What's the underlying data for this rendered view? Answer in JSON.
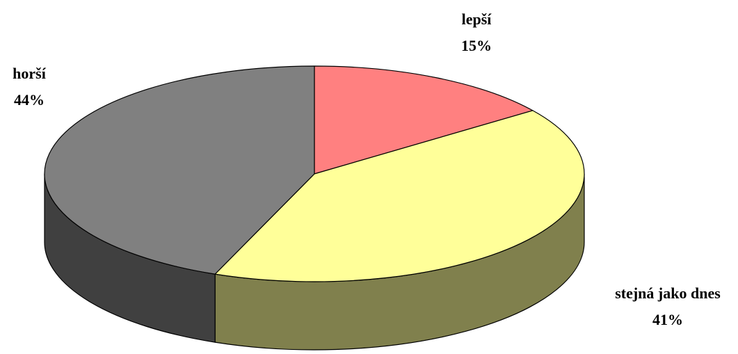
{
  "chart_data": {
    "type": "pie",
    "categories": [
      "lepší",
      "stejná jako dnes",
      "horší"
    ],
    "values": [
      15,
      41,
      44
    ],
    "value_labels": [
      "15%",
      "41%",
      "44%"
    ],
    "colors": [
      "#ff8080",
      "#ffff99",
      "#808080"
    ]
  }
}
